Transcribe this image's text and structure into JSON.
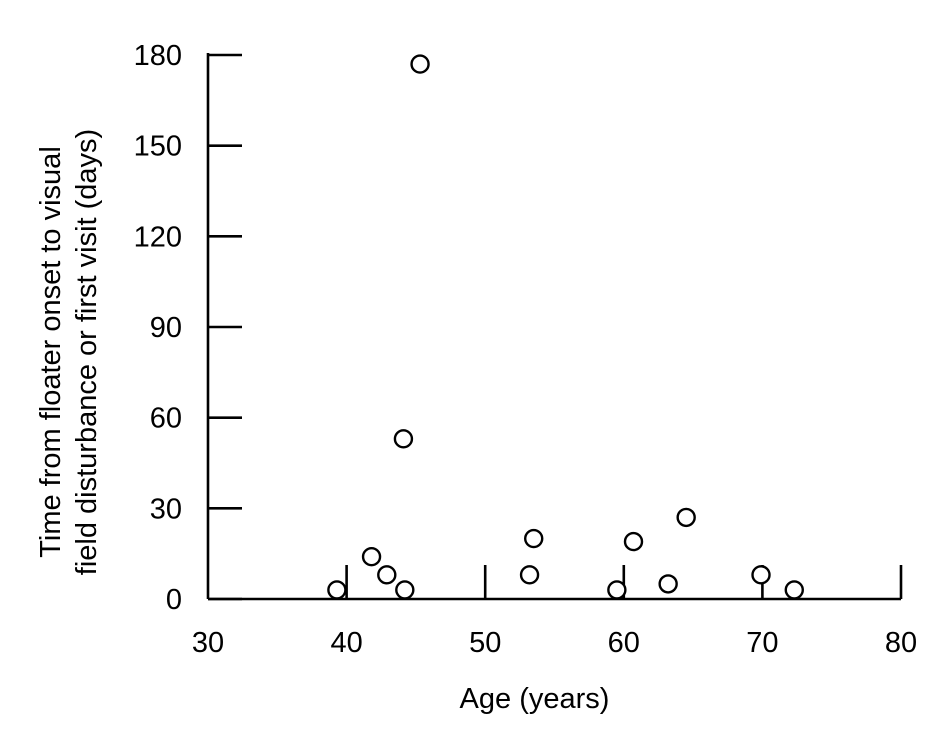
{
  "chart_data": {
    "type": "scatter",
    "xlabel": "Age (years)",
    "ylabel_lines": [
      "Time from floater onset to visual",
      "field disturbance or first visit (days)"
    ],
    "xlim": [
      30,
      80
    ],
    "ylim": [
      0,
      180
    ],
    "x_ticks": [
      30,
      40,
      50,
      60,
      70,
      80
    ],
    "y_ticks": [
      0,
      30,
      60,
      90,
      120,
      150,
      180
    ],
    "x_tick_labels": [
      "30",
      "40",
      "50",
      "60",
      "70",
      "80"
    ],
    "y_tick_labels": [
      "0",
      "30",
      "60",
      "90",
      "120",
      "150",
      "180"
    ],
    "grid": false,
    "marker": "open-circle",
    "points": [
      {
        "x": 39.3,
        "y": 3
      },
      {
        "x": 41.8,
        "y": 14
      },
      {
        "x": 42.9,
        "y": 8
      },
      {
        "x": 44.2,
        "y": 3
      },
      {
        "x": 44.1,
        "y": 53
      },
      {
        "x": 45.3,
        "y": 177
      },
      {
        "x": 53.2,
        "y": 8
      },
      {
        "x": 53.5,
        "y": 20
      },
      {
        "x": 59.5,
        "y": 3
      },
      {
        "x": 60.7,
        "y": 19
      },
      {
        "x": 63.2,
        "y": 5
      },
      {
        "x": 64.5,
        "y": 27
      },
      {
        "x": 69.9,
        "y": 8
      },
      {
        "x": 72.3,
        "y": 3
      }
    ]
  }
}
